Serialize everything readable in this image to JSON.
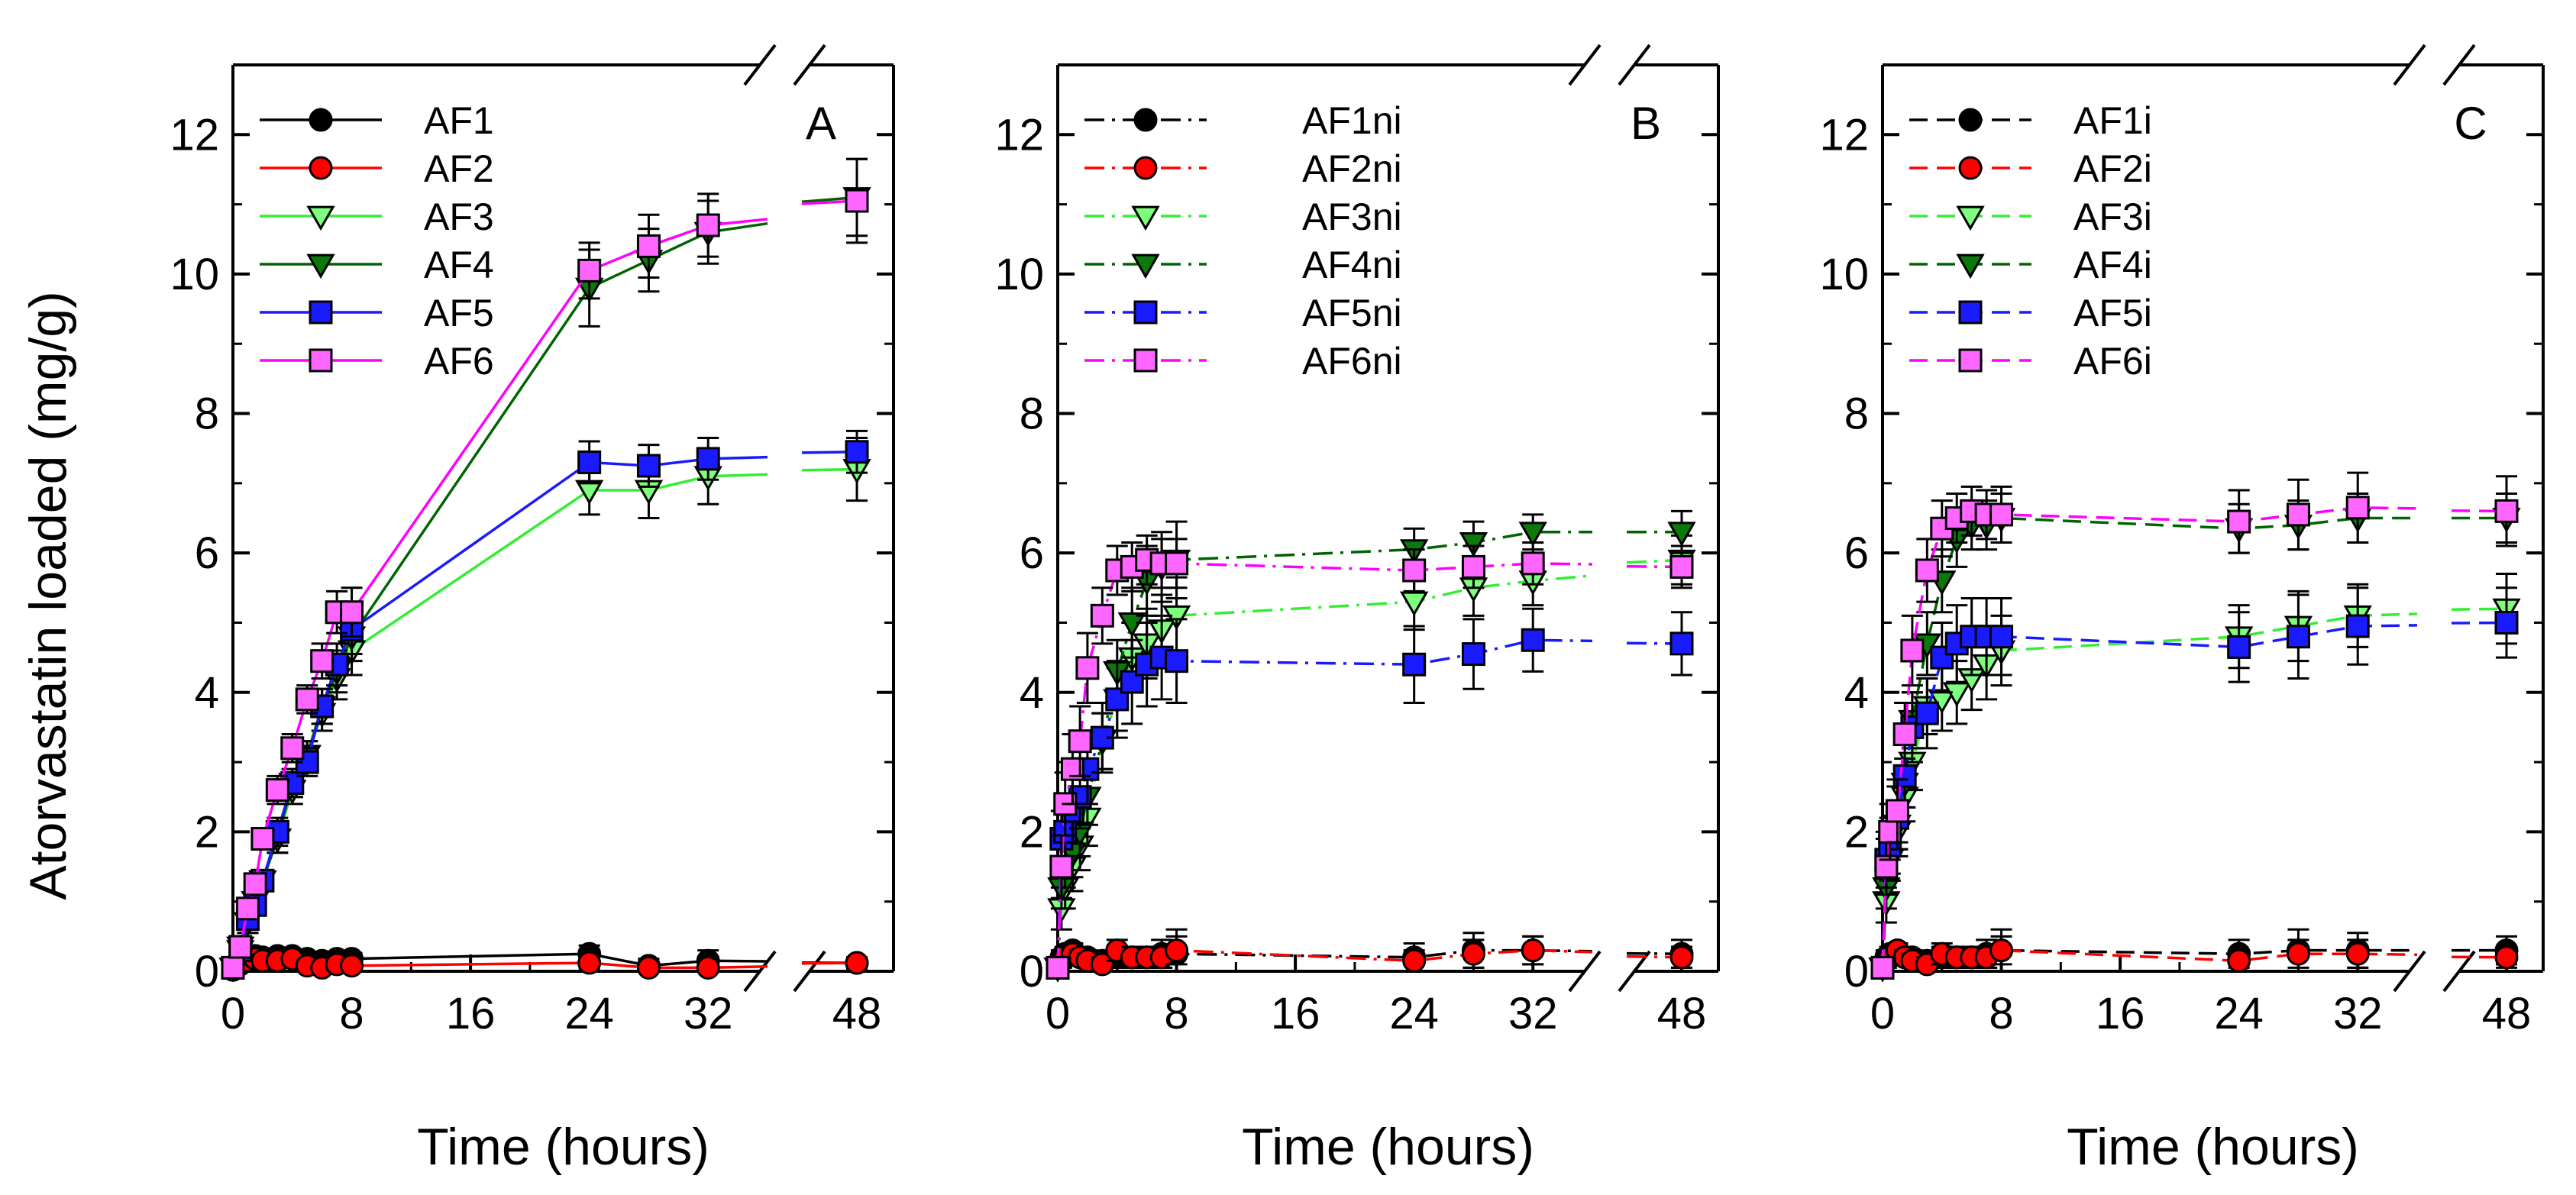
{
  "figure": {
    "ylabel": "Atorvastatin loaded (mg/g)",
    "xlabel": "Time (hours)",
    "x_ticks": [
      "0",
      "8",
      "16",
      "24",
      "32",
      "48"
    ],
    "y_ticks": [
      "0",
      "2",
      "4",
      "6",
      "8",
      "10",
      "12"
    ]
  },
  "chart_data": [
    {
      "type": "line",
      "panel_label": "A",
      "xlabel": "Time (hours)",
      "ylabel": "Atorvastatin loaded (mg/g)",
      "xlim": [
        0,
        48
      ],
      "ylim": [
        0,
        13
      ],
      "x_axis_break": [
        36,
        46
      ],
      "line_style": "solid",
      "legend_position": "top-left",
      "series": [
        {
          "name": "AF1",
          "color": "#000000",
          "fill": "#000000",
          "marker": "circle",
          "x": [
            0,
            0.5,
            1,
            1.5,
            2,
            3,
            4,
            5,
            6,
            7,
            8,
            24,
            28,
            32,
            48
          ],
          "y": [
            0.02,
            0.18,
            0.2,
            0.22,
            0.2,
            0.22,
            0.22,
            0.18,
            0.15,
            0.18,
            0.18,
            0.25,
            0.08,
            0.15,
            0.12
          ],
          "err": [
            0.05,
            0.1,
            0.1,
            0.1,
            0.1,
            0.08,
            0.08,
            0.08,
            0.08,
            0.08,
            0.08,
            0.12,
            0.1,
            0.15,
            0.08
          ]
        },
        {
          "name": "AF2",
          "color": "#ff0000",
          "fill": "#ff0000",
          "marker": "circle",
          "x": [
            0,
            0.5,
            1,
            1.5,
            2,
            3,
            4,
            5,
            6,
            7,
            8,
            24,
            28,
            32,
            48
          ],
          "y": [
            0.02,
            0.1,
            0.15,
            0.18,
            0.15,
            0.15,
            0.18,
            0.08,
            0.05,
            0.1,
            0.08,
            0.12,
            0.05,
            0.05,
            0.12
          ],
          "err": [
            0.05,
            0.08,
            0.08,
            0.08,
            0.08,
            0.08,
            0.08,
            0.08,
            0.08,
            0.08,
            0.08,
            0.08,
            0.05,
            0.05,
            0.08
          ]
        },
        {
          "name": "AF3",
          "color": "#33ee33",
          "fill": "#7dff7d",
          "marker": "triangle-down",
          "x": [
            0,
            0.5,
            1,
            1.5,
            2,
            3,
            4,
            5,
            6,
            7,
            8,
            24,
            28,
            32,
            48
          ],
          "y": [
            0.05,
            0.35,
            0.7,
            1.0,
            1.3,
            1.9,
            2.6,
            3.1,
            3.7,
            4.2,
            4.6,
            6.9,
            6.9,
            7.1,
            7.2
          ],
          "err": [
            0.05,
            0.15,
            0.15,
            0.15,
            0.15,
            0.2,
            0.2,
            0.2,
            0.25,
            0.3,
            0.35,
            0.35,
            0.4,
            0.4,
            0.45
          ]
        },
        {
          "name": "AF4",
          "color": "#006400",
          "fill": "#0b7a0b",
          "marker": "triangle-down",
          "x": [
            0,
            0.5,
            1,
            1.5,
            2,
            3,
            4,
            5,
            6,
            7,
            8,
            24,
            28,
            32,
            48
          ],
          "y": [
            0.05,
            0.3,
            0.7,
            1.0,
            1.3,
            1.9,
            2.7,
            3.1,
            3.8,
            4.3,
            4.8,
            9.8,
            10.2,
            10.6,
            11.1
          ],
          "err": [
            0.05,
            0.15,
            0.15,
            0.15,
            0.15,
            0.2,
            0.2,
            0.2,
            0.25,
            0.3,
            0.35,
            0.55,
            0.45,
            0.45,
            0.55
          ]
        },
        {
          "name": "AF5",
          "color": "#1a1aff",
          "fill": "#1a1aff",
          "marker": "square",
          "x": [
            0,
            0.5,
            1,
            1.5,
            2,
            3,
            4,
            5,
            6,
            7,
            8,
            24,
            28,
            32,
            48
          ],
          "y": [
            0.05,
            0.3,
            0.75,
            0.95,
            1.3,
            2.0,
            2.7,
            3.0,
            3.8,
            4.4,
            4.9,
            7.3,
            7.25,
            7.35,
            7.45
          ],
          "err": [
            0.05,
            0.15,
            0.15,
            0.15,
            0.15,
            0.2,
            0.2,
            0.2,
            0.25,
            0.3,
            0.35,
            0.3,
            0.3,
            0.3,
            0.3
          ]
        },
        {
          "name": "AF6",
          "color": "#ff00ff",
          "fill": "#ff66ff",
          "marker": "square",
          "x": [
            0,
            0.5,
            1,
            1.5,
            2,
            3,
            4,
            5,
            6,
            7,
            8,
            24,
            28,
            32,
            48
          ],
          "y": [
            0.05,
            0.35,
            0.9,
            1.25,
            1.9,
            2.6,
            3.2,
            3.9,
            4.45,
            5.15,
            5.15,
            10.05,
            10.4,
            10.7,
            11.05
          ],
          "err": [
            0.05,
            0.15,
            0.15,
            0.15,
            0.15,
            0.2,
            0.2,
            0.2,
            0.25,
            0.3,
            0.35,
            0.4,
            0.45,
            0.45,
            0.6
          ]
        }
      ]
    },
    {
      "type": "line",
      "panel_label": "B",
      "xlabel": "Time (hours)",
      "ylabel": "",
      "xlim": [
        0,
        48
      ],
      "ylim": [
        0,
        13
      ],
      "x_axis_break": [
        36,
        46
      ],
      "line_style": "dash-dot",
      "legend_position": "top-left",
      "series": [
        {
          "name": "AF1ni",
          "color": "#000000",
          "fill": "#000000",
          "marker": "circle",
          "x": [
            0,
            0.25,
            0.5,
            1,
            1.5,
            2,
            3,
            4,
            5,
            6,
            7,
            8,
            24,
            28,
            32,
            48
          ],
          "y": [
            0.05,
            0.2,
            0.25,
            0.3,
            0.2,
            0.2,
            0.15,
            0.2,
            0.2,
            0.2,
            0.25,
            0.25,
            0.2,
            0.3,
            0.3,
            0.25
          ],
          "err": [
            0.05,
            0.1,
            0.1,
            0.1,
            0.1,
            0.1,
            0.1,
            0.15,
            0.15,
            0.15,
            0.2,
            0.35,
            0.2,
            0.25,
            0.2,
            0.2
          ]
        },
        {
          "name": "AF2ni",
          "color": "#ff0000",
          "fill": "#ff0000",
          "marker": "circle",
          "x": [
            0,
            0.25,
            0.5,
            1,
            1.5,
            2,
            3,
            4,
            5,
            6,
            7,
            8,
            24,
            28,
            32,
            48
          ],
          "y": [
            0.05,
            0.15,
            0.2,
            0.25,
            0.2,
            0.15,
            0.1,
            0.3,
            0.2,
            0.2,
            0.2,
            0.3,
            0.15,
            0.25,
            0.3,
            0.2
          ],
          "err": [
            0.05,
            0.1,
            0.1,
            0.1,
            0.1,
            0.1,
            0.1,
            0.15,
            0.15,
            0.15,
            0.15,
            0.2,
            0.15,
            0.2,
            0.2,
            0.15
          ]
        },
        {
          "name": "AF3ni",
          "color": "#33ee33",
          "fill": "#7dff7d",
          "marker": "triangle-down",
          "x": [
            0,
            0.25,
            0.5,
            1,
            1.5,
            2,
            3,
            4,
            5,
            6,
            7,
            8,
            24,
            28,
            32,
            48
          ],
          "y": [
            0.05,
            0.9,
            1.2,
            1.5,
            1.8,
            2.2,
            3.3,
            3.9,
            4.5,
            4.7,
            4.9,
            5.1,
            5.3,
            5.5,
            5.6,
            5.9
          ],
          "err": [
            0.05,
            0.3,
            0.3,
            0.35,
            0.35,
            0.4,
            0.4,
            0.45,
            0.5,
            0.5,
            0.5,
            0.55,
            0.4,
            0.4,
            0.35,
            0.35
          ]
        },
        {
          "name": "AF4ni",
          "color": "#006400",
          "fill": "#0b7a0b",
          "marker": "triangle-down",
          "x": [
            0,
            0.25,
            0.5,
            1,
            1.5,
            2,
            3,
            4,
            5,
            6,
            7,
            8,
            24,
            28,
            32,
            48
          ],
          "y": [
            0.05,
            1.2,
            1.5,
            1.7,
            2.0,
            2.5,
            3.3,
            4.3,
            5.0,
            5.6,
            5.8,
            5.9,
            6.05,
            6.15,
            6.3,
            6.3
          ],
          "err": [
            0.05,
            0.3,
            0.3,
            0.35,
            0.35,
            0.4,
            0.4,
            0.45,
            0.5,
            0.5,
            0.5,
            0.55,
            0.3,
            0.3,
            0.25,
            0.3
          ]
        },
        {
          "name": "AF5ni",
          "color": "#1a1aff",
          "fill": "#1a1aff",
          "marker": "square",
          "x": [
            0,
            0.25,
            0.5,
            1,
            1.5,
            2,
            3,
            4,
            5,
            6,
            7,
            8,
            24,
            28,
            32,
            48
          ],
          "y": [
            0.05,
            1.9,
            2.0,
            2.3,
            2.5,
            2.9,
            3.35,
            3.9,
            4.15,
            4.4,
            4.5,
            4.45,
            4.4,
            4.55,
            4.75,
            4.7
          ],
          "err": [
            0.05,
            0.4,
            0.4,
            0.45,
            0.45,
            0.5,
            0.5,
            0.55,
            0.6,
            0.6,
            0.6,
            0.6,
            0.55,
            0.5,
            0.45,
            0.45
          ]
        },
        {
          "name": "AF6ni",
          "color": "#ff00ff",
          "fill": "#ff66ff",
          "marker": "square",
          "x": [
            0,
            0.25,
            0.5,
            1,
            1.5,
            2,
            3,
            4,
            5,
            6,
            7,
            8,
            24,
            28,
            32,
            48
          ],
          "y": [
            0.05,
            1.5,
            2.4,
            2.9,
            3.3,
            4.35,
            5.1,
            5.75,
            5.8,
            5.9,
            5.85,
            5.85,
            5.75,
            5.8,
            5.85,
            5.8
          ],
          "err": [
            0.05,
            0.45,
            0.45,
            0.5,
            0.5,
            0.5,
            0.4,
            0.35,
            0.35,
            0.35,
            0.35,
            0.35,
            0.3,
            0.3,
            0.3,
            0.3
          ]
        }
      ]
    },
    {
      "type": "line",
      "panel_label": "C",
      "xlabel": "Time (hours)",
      "ylabel": "",
      "xlim": [
        0,
        48
      ],
      "ylim": [
        0,
        13
      ],
      "x_axis_break": [
        36,
        46
      ],
      "line_style": "dashed",
      "legend_position": "top-left",
      "series": [
        {
          "name": "AF1i",
          "color": "#000000",
          "fill": "#000000",
          "marker": "circle",
          "x": [
            0,
            0.25,
            0.5,
            1,
            1.5,
            2,
            3,
            4,
            5,
            6,
            7,
            8,
            24,
            28,
            32,
            48
          ],
          "y": [
            0.05,
            0.2,
            0.25,
            0.3,
            0.2,
            0.2,
            0.15,
            0.2,
            0.2,
            0.2,
            0.25,
            0.3,
            0.25,
            0.3,
            0.3,
            0.3
          ],
          "err": [
            0.05,
            0.1,
            0.1,
            0.1,
            0.1,
            0.1,
            0.1,
            0.15,
            0.15,
            0.15,
            0.2,
            0.3,
            0.2,
            0.3,
            0.25,
            0.2
          ]
        },
        {
          "name": "AF2i",
          "color": "#ff0000",
          "fill": "#ff0000",
          "marker": "circle",
          "x": [
            0,
            0.25,
            0.5,
            1,
            1.5,
            2,
            3,
            4,
            5,
            6,
            7,
            8,
            24,
            28,
            32,
            48
          ],
          "y": [
            0.05,
            0.15,
            0.2,
            0.3,
            0.2,
            0.15,
            0.1,
            0.25,
            0.2,
            0.2,
            0.2,
            0.3,
            0.15,
            0.25,
            0.25,
            0.2
          ],
          "err": [
            0.05,
            0.1,
            0.1,
            0.1,
            0.1,
            0.1,
            0.1,
            0.15,
            0.15,
            0.15,
            0.15,
            0.2,
            0.15,
            0.2,
            0.2,
            0.15
          ]
        },
        {
          "name": "AF3i",
          "color": "#33ee33",
          "fill": "#7dff7d",
          "marker": "triangle-down",
          "x": [
            0,
            0.25,
            0.5,
            1,
            1.5,
            2,
            3,
            4,
            5,
            6,
            7,
            8,
            24,
            28,
            32,
            48
          ],
          "y": [
            0.05,
            1.0,
            1.6,
            2.0,
            2.5,
            3.0,
            3.8,
            3.9,
            4.0,
            4.2,
            4.4,
            4.6,
            4.8,
            4.95,
            5.1,
            5.2
          ],
          "err": [
            0.05,
            0.3,
            0.3,
            0.35,
            0.35,
            0.4,
            0.4,
            0.45,
            0.45,
            0.45,
            0.5,
            0.5,
            0.45,
            0.5,
            0.45,
            0.5
          ]
        },
        {
          "name": "AF4i",
          "color": "#006400",
          "fill": "#0b7a0b",
          "marker": "triangle-down",
          "x": [
            0,
            0.25,
            0.5,
            1,
            1.5,
            2,
            3,
            4,
            5,
            6,
            7,
            8,
            24,
            28,
            32,
            48
          ],
          "y": [
            0.05,
            1.2,
            1.6,
            2.1,
            2.7,
            3.6,
            4.7,
            5.6,
            6.2,
            6.4,
            6.4,
            6.5,
            6.35,
            6.4,
            6.5,
            6.5
          ],
          "err": [
            0.05,
            0.3,
            0.3,
            0.35,
            0.35,
            0.4,
            0.45,
            0.45,
            0.4,
            0.35,
            0.35,
            0.35,
            0.35,
            0.35,
            0.35,
            0.35
          ]
        },
        {
          "name": "AF5i",
          "color": "#1a1aff",
          "fill": "#1a1aff",
          "marker": "square",
          "x": [
            0,
            0.25,
            0.5,
            1,
            1.5,
            2,
            3,
            4,
            5,
            6,
            7,
            8,
            24,
            28,
            32,
            48
          ],
          "y": [
            0.05,
            1.6,
            1.8,
            2.2,
            2.8,
            3.5,
            3.7,
            4.5,
            4.7,
            4.8,
            4.8,
            4.8,
            4.65,
            4.8,
            4.95,
            5.0
          ],
          "err": [
            0.05,
            0.4,
            0.4,
            0.45,
            0.45,
            0.5,
            0.5,
            0.5,
            0.55,
            0.55,
            0.55,
            0.55,
            0.5,
            0.6,
            0.55,
            0.5
          ]
        },
        {
          "name": "AF6i",
          "color": "#ff00ff",
          "fill": "#ff66ff",
          "marker": "square",
          "x": [
            0,
            0.25,
            0.5,
            1,
            1.5,
            2,
            3,
            4,
            5,
            6,
            7,
            8,
            24,
            28,
            32,
            48
          ],
          "y": [
            0.05,
            1.5,
            2.0,
            2.3,
            3.4,
            4.6,
            5.75,
            6.35,
            6.5,
            6.6,
            6.55,
            6.55,
            6.45,
            6.55,
            6.65,
            6.6
          ],
          "err": [
            0.05,
            0.4,
            0.4,
            0.45,
            0.45,
            0.5,
            0.45,
            0.4,
            0.35,
            0.35,
            0.35,
            0.4,
            0.45,
            0.5,
            0.5,
            0.5
          ]
        }
      ]
    }
  ]
}
